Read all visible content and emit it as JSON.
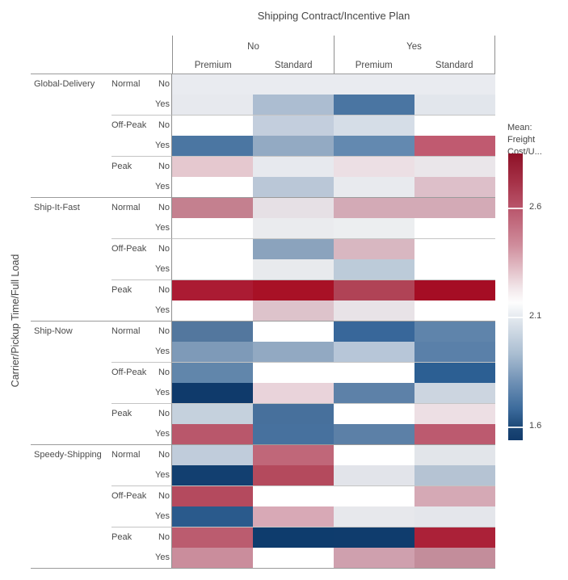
{
  "title": "Shipping Contract/Incentive Plan",
  "y_axis_label": "Carrier/Pickup Time/Full Load",
  "columns": {
    "level1": [
      "No",
      "Yes"
    ],
    "level2": [
      "Premium",
      "Standard",
      "Premium",
      "Standard"
    ]
  },
  "legend": {
    "title_line1": "Mean:",
    "title_line2": "Freight Cost/U...",
    "ticks": [
      "2.6",
      "2.1",
      "1.6"
    ],
    "tick_positions_pct": [
      18.9,
      56.9,
      95.2
    ],
    "top_color": "#8e1127",
    "mid_color": "#ffffff",
    "bottom_color": "#113a6b"
  },
  "chart_data": {
    "type": "heatmap",
    "title": "Shipping Contract/Incentive Plan",
    "row_dimension": "Carrier/Pickup Time/Full Load",
    "column_dimension_levels": [
      "Shipping Contract",
      "Incentive Plan"
    ],
    "columns": [
      {
        "contract": "No",
        "plan": "Premium"
      },
      {
        "contract": "No",
        "plan": "Standard"
      },
      {
        "contract": "Yes",
        "plan": "Premium"
      },
      {
        "contract": "Yes",
        "plan": "Standard"
      }
    ],
    "measure": "Mean: Freight Cost/U...",
    "value_range": [
      1.55,
      2.85
    ],
    "rows": [
      {
        "carrier": "Global-Delivery",
        "pickup_time": "Normal",
        "full_load": "No",
        "colors": [
          "#e9ebf0",
          "#e9ebf0",
          "#e9ebf0",
          "#e9ebf0"
        ],
        "values": [
          2.15,
          2.15,
          2.15,
          2.15
        ]
      },
      {
        "carrier": "",
        "pickup_time": "",
        "full_load": "Yes",
        "colors": [
          "#e7e9ee",
          "#acbdd1",
          "#4a75a2",
          "#e2e6ec"
        ],
        "values": [
          2.15,
          1.95,
          1.7,
          2.1
        ]
      },
      {
        "carrier": "",
        "pickup_time": "Off-Peak",
        "full_load": "No",
        "colors": [
          "#ffffff",
          "#c3cedd",
          "#d5dde7",
          "#ffffff"
        ],
        "values": [
          2.2,
          2.0,
          2.05,
          2.2
        ]
      },
      {
        "carrier": "",
        "pickup_time": "",
        "full_load": "Yes",
        "colors": [
          "#4b76a2",
          "#93aac3",
          "#6389b0",
          "#c05a70"
        ],
        "values": [
          1.7,
          1.9,
          1.78,
          2.55
        ]
      },
      {
        "carrier": "",
        "pickup_time": "Peak",
        "full_load": "No",
        "colors": [
          "#e5c8cf",
          "#e7e9ee",
          "#ecdfe4",
          "#eae6ea"
        ],
        "values": [
          2.35,
          2.15,
          2.3,
          2.2
        ]
      },
      {
        "carrier": "",
        "pickup_time": "",
        "full_load": "Yes",
        "colors": [
          "#ffffff",
          "#bac7d7",
          "#e8eaee",
          "#ddbfc9"
        ],
        "values": [
          2.2,
          1.98,
          2.15,
          2.38
        ]
      },
      {
        "carrier": "Ship-It-Fast",
        "pickup_time": "Normal",
        "full_load": "No",
        "colors": [
          "#c4808f",
          "#e6e0e5",
          "#d3aab6",
          "#d3aab6"
        ],
        "values": [
          2.45,
          2.25,
          2.4,
          2.4
        ]
      },
      {
        "carrier": "",
        "pickup_time": "",
        "full_load": "Yes",
        "colors": [
          "#ffffff",
          "#eaebee",
          "#eceef0",
          "#ffffff"
        ],
        "values": [
          2.2,
          2.15,
          2.15,
          2.2
        ]
      },
      {
        "carrier": "",
        "pickup_time": "Off-Peak",
        "full_load": "No",
        "colors": [
          "#ffffff",
          "#8ba3bd",
          "#d8b7c1",
          "#ffffff"
        ],
        "values": [
          2.2,
          1.88,
          2.38,
          2.2
        ]
      },
      {
        "carrier": "",
        "pickup_time": "",
        "full_load": "Yes",
        "colors": [
          "#ffffff",
          "#e8eaed",
          "#bccbd9",
          "#ffffff"
        ],
        "values": [
          2.2,
          2.15,
          1.98,
          2.2
        ]
      },
      {
        "carrier": "",
        "pickup_time": "Peak",
        "full_load": "No",
        "colors": [
          "#ab1b33",
          "#a81126",
          "#b04356",
          "#a50d24"
        ],
        "values": [
          2.78,
          2.82,
          2.68,
          2.85
        ]
      },
      {
        "carrier": "",
        "pickup_time": "",
        "full_load": "Yes",
        "colors": [
          "#ffffff",
          "#ddc3cb",
          "#e8e3e7",
          "#ffffff"
        ],
        "values": [
          2.2,
          2.35,
          2.25,
          2.2
        ]
      },
      {
        "carrier": "Ship-Now",
        "pickup_time": "Normal",
        "full_load": "No",
        "colors": [
          "#53779e",
          "#ffffff",
          "#38679a",
          "#5f84ab"
        ],
        "values": [
          1.72,
          2.2,
          1.65,
          1.76
        ]
      },
      {
        "carrier": "",
        "pickup_time": "",
        "full_load": "Yes",
        "colors": [
          "#7e9ab8",
          "#92a9c2",
          "#b7c6d8",
          "#5a80a9"
        ],
        "values": [
          1.84,
          1.9,
          1.97,
          1.75
        ]
      },
      {
        "carrier": "",
        "pickup_time": "Off-Peak",
        "full_load": "No",
        "colors": [
          "#6186ab",
          "#ffffff",
          "#ffffff",
          "#2c5f93"
        ],
        "values": [
          1.77,
          2.2,
          2.2,
          1.62
        ]
      },
      {
        "carrier": "",
        "pickup_time": "",
        "full_load": "Yes",
        "colors": [
          "#0f3a6b",
          "#e9d3da",
          "#5d81a8",
          "#ccd5e0"
        ],
        "values": [
          1.55,
          2.3,
          1.75,
          2.0
        ]
      },
      {
        "carrier": "",
        "pickup_time": "Peak",
        "full_load": "No",
        "colors": [
          "#c5d1dd",
          "#47709c",
          "#ffffff",
          "#eddfe4"
        ],
        "values": [
          2.0,
          1.69,
          2.2,
          2.28
        ]
      },
      {
        "carrier": "",
        "pickup_time": "",
        "full_load": "Yes",
        "colors": [
          "#b9576b",
          "#47719e",
          "#5c80a7",
          "#bc5a6f"
        ],
        "values": [
          2.57,
          1.69,
          1.75,
          2.55
        ]
      },
      {
        "carrier": "Speedy-Shipping",
        "pickup_time": "Normal",
        "full_load": "No",
        "colors": [
          "#c0ccdb",
          "#c06779",
          "#ffffff",
          "#e2e5ea"
        ],
        "values": [
          1.99,
          2.5,
          2.2,
          2.1
        ]
      },
      {
        "carrier": "",
        "pickup_time": "",
        "full_load": "Yes",
        "colors": [
          "#123f70",
          "#b44a5d",
          "#e2e4ea",
          "#b5c3d3"
        ],
        "values": [
          1.56,
          2.6,
          2.1,
          1.96
        ]
      },
      {
        "carrier": "",
        "pickup_time": "Off-Peak",
        "full_load": "No",
        "colors": [
          "#b44a5e",
          "#ffffff",
          "#ffffff",
          "#d5a9b5"
        ],
        "values": [
          2.6,
          2.2,
          2.2,
          2.4
        ]
      },
      {
        "carrier": "",
        "pickup_time": "",
        "full_load": "Yes",
        "colors": [
          "#2a5a8c",
          "#d8a9b6",
          "#e7e8ec",
          "#e4e6eb"
        ],
        "values": [
          1.6,
          2.4,
          2.15,
          2.12
        ]
      },
      {
        "carrier": "",
        "pickup_time": "Peak",
        "full_load": "No",
        "colors": [
          "#bb5c6f",
          "#0e3c6d",
          "#0f3c6d",
          "#ab2138"
        ],
        "values": [
          2.55,
          1.55,
          1.55,
          2.78
        ]
      },
      {
        "carrier": "",
        "pickup_time": "",
        "full_load": "Yes",
        "colors": [
          "#ca8d9c",
          "#ffffff",
          "#cfa0ae",
          "#c38d9b"
        ],
        "values": [
          2.42,
          2.2,
          2.42,
          2.45
        ]
      }
    ]
  }
}
